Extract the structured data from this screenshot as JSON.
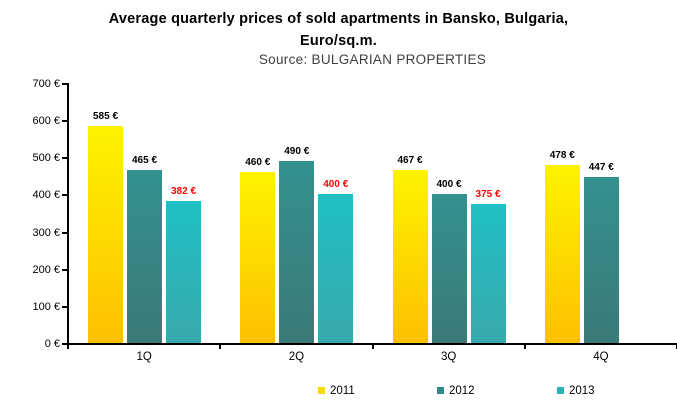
{
  "title": {
    "line1": "Average quarterly prices of sold apartments in Bansko, Bulgaria,",
    "line2": "Euro/sq.m.",
    "source": "Source: BULGARIAN PROPERTIES"
  },
  "colors": {
    "axis": "#000000",
    "background": "#ffffff",
    "subtitle_text": "#404040",
    "negative_label": "#ff0000"
  },
  "chart_data": {
    "type": "bar",
    "title": "Average quarterly prices of sold apartments in Bansko, Bulgaria, Euro/sq.m.",
    "subtitle": "Source: BULGARIAN PROPERTIES",
    "categories": [
      "1Q",
      "2Q",
      "3Q",
      "4Q"
    ],
    "series": [
      {
        "name": "2011",
        "values": [
          585,
          460,
          467,
          478
        ],
        "color_top": "#fdf300",
        "color_bottom": "#fec000",
        "legend_color": "#f6dc00",
        "label_color": "#000000"
      },
      {
        "name": "2012",
        "values": [
          465,
          490,
          400,
          447
        ],
        "color_top": "#33918e",
        "color_bottom": "#3b7a77",
        "legend_color": "#2f8b89",
        "label_color": "#000000"
      },
      {
        "name": "2013",
        "values": [
          382,
          400,
          375,
          null
        ],
        "color_top": "#1fc0c4",
        "color_bottom": "#38a9ad",
        "legend_color": "#2bb3b6",
        "label_color": "#ff0000"
      }
    ],
    "ymin": 0,
    "ymax": 700,
    "ytick_step": 100,
    "ytick_labels": [
      "0 €",
      "100 €",
      "200 €",
      "300 €",
      "400 €",
      "500 €",
      "600 €",
      "700 €"
    ],
    "value_suffix": "€",
    "data_labels": [
      [
        "585 €",
        "460 €",
        "467 €",
        "478 €"
      ],
      [
        "465 €",
        "490 €",
        "400 €",
        "447 €"
      ],
      [
        "382 €",
        "400 €",
        "375 €",
        null
      ]
    ],
    "grid": false,
    "legend_position": "bottom",
    "legend": [
      "2011",
      "2012",
      "2013"
    ]
  }
}
